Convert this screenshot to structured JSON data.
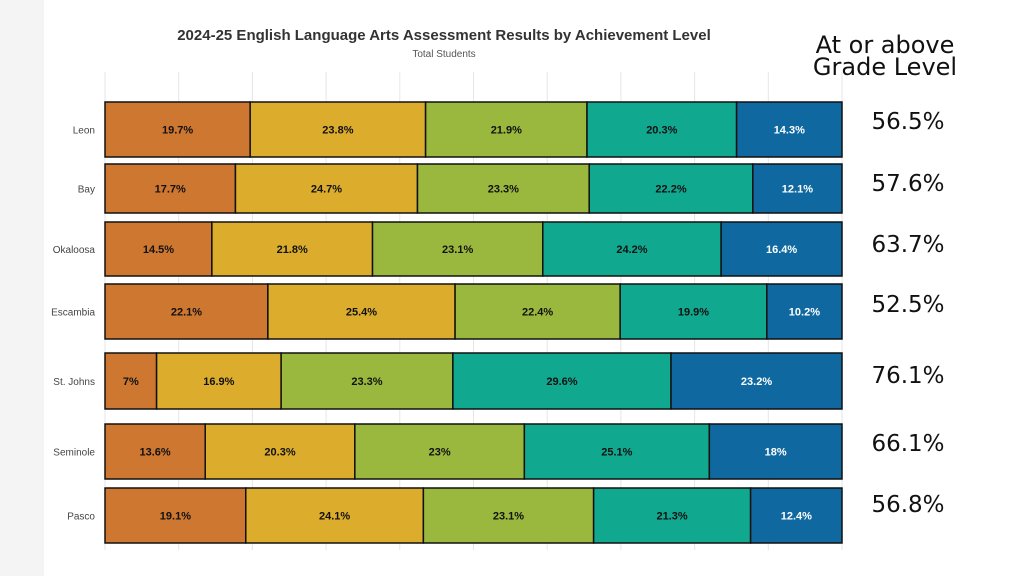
{
  "chart_data": {
    "type": "bar",
    "orientation": "horizontal",
    "stacked": true,
    "title": "2024-25 English Language Arts Assessment Results by Achievement Level",
    "subtitle": "Total Students",
    "categories": [
      "Leon",
      "Bay",
      "Okaloosa",
      "Escambia",
      "St. Johns",
      "Seminole",
      "Pasco"
    ],
    "series": [
      {
        "color": "#cd7731",
        "values": [
          19.7,
          17.7,
          14.5,
          22.1,
          7,
          13.6,
          19.1
        ]
      },
      {
        "color": "#dcac2d",
        "values": [
          23.8,
          24.7,
          21.8,
          25.4,
          16.9,
          20.3,
          24.1
        ]
      },
      {
        "color": "#9bb83e",
        "values": [
          21.9,
          23.3,
          23.1,
          22.4,
          23.3,
          23,
          23.1
        ]
      },
      {
        "color": "#11a890",
        "values": [
          20.3,
          22.2,
          24.2,
          19.9,
          29.6,
          25.1,
          21.3
        ]
      },
      {
        "color": "#0f69a0",
        "values": [
          14.3,
          12.1,
          16.4,
          10.2,
          23.2,
          18,
          12.4
        ]
      }
    ],
    "labels": [
      [
        "19.7%",
        "23.8%",
        "21.9%",
        "20.3%",
        "14.3%"
      ],
      [
        "17.7%",
        "24.7%",
        "23.3%",
        "22.2%",
        "12.1%"
      ],
      [
        "14.5%",
        "21.8%",
        "23.1%",
        "24.2%",
        "16.4%"
      ],
      [
        "22.1%",
        "25.4%",
        "22.4%",
        "19.9%",
        "10.2%"
      ],
      [
        "7%",
        "16.9%",
        "23.3%",
        "29.6%",
        "23.2%"
      ],
      [
        "13.6%",
        "20.3%",
        "23%",
        "25.1%",
        "18%"
      ],
      [
        "19.1%",
        "24.1%",
        "23.1%",
        "21.3%",
        "12.4%"
      ]
    ],
    "xlim": [
      0,
      100
    ],
    "grid": true,
    "legend": "none"
  },
  "side": {
    "header_line1": "At or above",
    "header_line2": "Grade Level",
    "values": [
      "56.5%",
      "57.6%",
      "63.7%",
      "52.5%",
      "76.1%",
      "66.1%",
      "56.8%"
    ]
  }
}
